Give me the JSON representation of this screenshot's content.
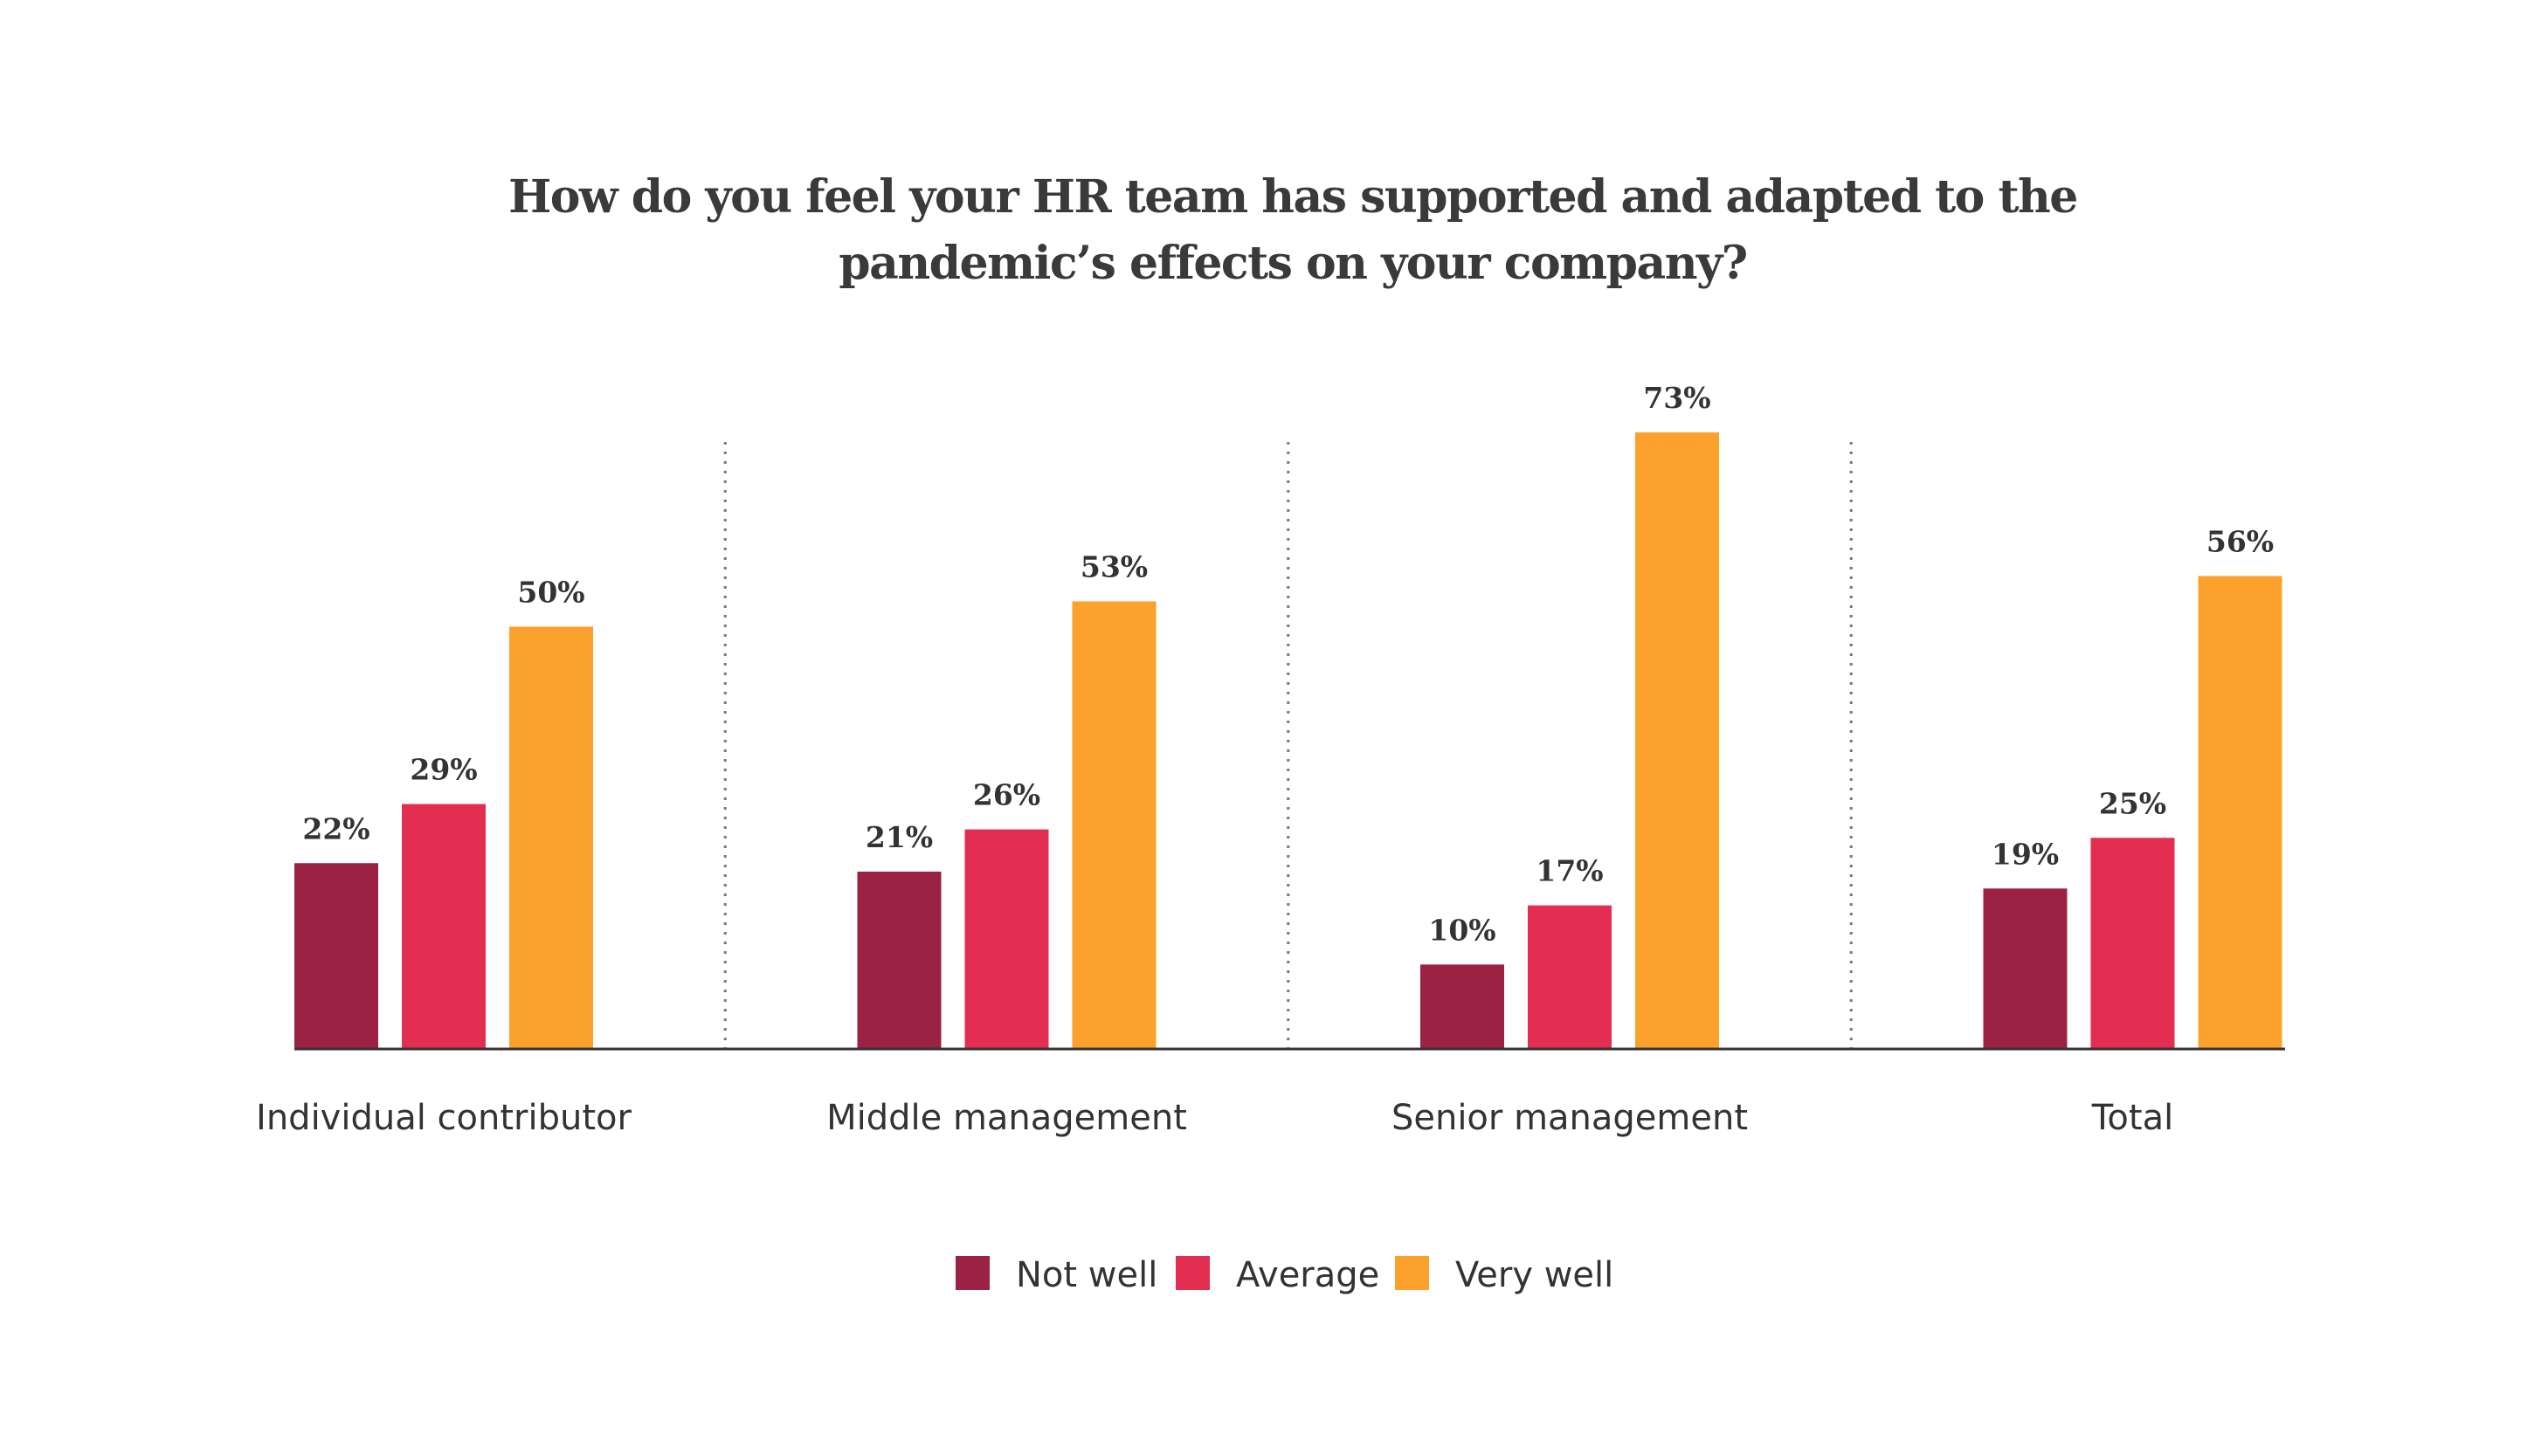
{
  "chart_data": {
    "type": "bar",
    "title": [
      "How do you feel your HR team has supported and adapted to the",
      "pandemic’s effects on your company?"
    ],
    "categories": [
      "Individual contributor",
      "Middle management",
      "Senior management",
      "Total"
    ],
    "series": [
      {
        "name": "Not well",
        "color": "#9B2242",
        "values": [
          22,
          21,
          10,
          19
        ]
      },
      {
        "name": "Average",
        "color": "#E32D51",
        "values": [
          29,
          26,
          17,
          25
        ]
      },
      {
        "name": "Very well",
        "color": "#FCA22C",
        "values": [
          50,
          53,
          73,
          56
        ]
      }
    ],
    "value_suffix": "%",
    "ylim": [
      0,
      73
    ],
    "grid": false,
    "group_separators": "dotted",
    "legend_position": "bottom-center",
    "axis_color": "#333333"
  }
}
